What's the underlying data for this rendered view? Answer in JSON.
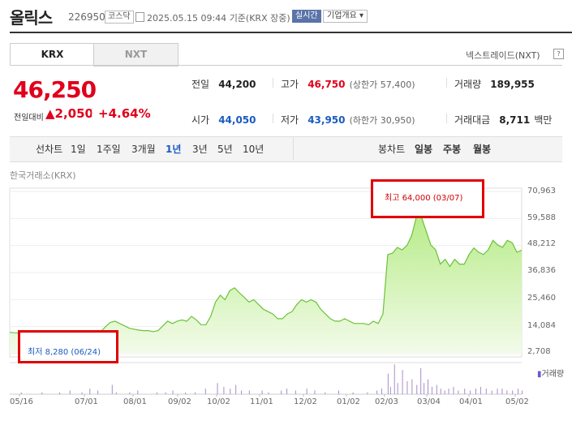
{
  "header": {
    "name": "올릭스",
    "code": "226950",
    "market": "코스닥",
    "date": "2025.05.15 09:44",
    "basis": "기준(KRX 장중)",
    "live": "실시간",
    "company_info": "기업개요 ▾"
  },
  "tabs": [
    {
      "label": "KRX"
    },
    {
      "label": "NXT"
    }
  ],
  "nxt_link": "넥스트레이드(NXT)",
  "quote": {
    "price": "46,250",
    "change_label": "전일대비",
    "change": "▲2,050",
    "change_pct": "+4.64%",
    "prev_close": {
      "label": "전일",
      "value": "44,200"
    },
    "high": {
      "label": "고가",
      "value": "46,750",
      "sub": "(상한가 57,400)"
    },
    "volume": {
      "label": "거래량",
      "value": "189,955"
    },
    "open": {
      "label": "시가",
      "value": "44,050"
    },
    "low": {
      "label": "저가",
      "value": "43,950",
      "sub": "(하한가 30,950)"
    },
    "amount": {
      "label": "거래대금",
      "value": "8,711",
      "unit": "백만"
    }
  },
  "periods": {
    "line_label": "선차트",
    "line_items": [
      "1일",
      "1주일",
      "3개월",
      "1년",
      "3년",
      "5년",
      "10년"
    ],
    "active": "1년",
    "candle_label": "봉차트",
    "candle_items": [
      "일봉",
      "주봉",
      "월봉"
    ]
  },
  "exchange_label": "한국거래소(KRX)",
  "chart_data": {
    "type": "area",
    "y_ticks": [
      "70,963",
      "59,588",
      "48,212",
      "36,836",
      "25,460",
      "14,084",
      "2,708"
    ],
    "ylim": [
      2708,
      70963
    ],
    "x_ticks": [
      "05/16",
      "07/01",
      "08/01",
      "09/02",
      "10/02",
      "11/01",
      "12/02",
      "01/02",
      "02/03",
      "03/04",
      "04/01",
      "05/02"
    ],
    "high_annotation": "최고 64,000 (03/07)",
    "low_annotation": "최저 8,280 (06/24)",
    "volume_label": "거래량",
    "price_series": [
      [
        0,
        11700
      ],
      [
        6,
        11500
      ],
      [
        12,
        11400
      ],
      [
        18,
        11000
      ],
      [
        24,
        10700
      ],
      [
        30,
        10800
      ],
      [
        36,
        10200
      ],
      [
        42,
        10000
      ],
      [
        48,
        9000
      ],
      [
        54,
        8600
      ],
      [
        60,
        9000
      ],
      [
        66,
        8300
      ],
      [
        72,
        8280
      ],
      [
        78,
        8700
      ],
      [
        84,
        8900
      ],
      [
        90,
        9100
      ],
      [
        96,
        9600
      ],
      [
        102,
        10400
      ],
      [
        108,
        11000
      ],
      [
        114,
        11900
      ],
      [
        120,
        14000
      ],
      [
        126,
        15800
      ],
      [
        132,
        16400
      ],
      [
        138,
        15400
      ],
      [
        144,
        14400
      ],
      [
        150,
        13400
      ],
      [
        156,
        13000
      ],
      [
        162,
        12600
      ],
      [
        168,
        12400
      ],
      [
        174,
        12400
      ],
      [
        180,
        12000
      ],
      [
        186,
        12400
      ],
      [
        192,
        14400
      ],
      [
        198,
        16400
      ],
      [
        204,
        15400
      ],
      [
        210,
        16400
      ],
      [
        216,
        16900
      ],
      [
        222,
        16400
      ],
      [
        228,
        18400
      ],
      [
        234,
        16900
      ],
      [
        240,
        14900
      ],
      [
        246,
        14900
      ],
      [
        252,
        18400
      ],
      [
        258,
        24400
      ],
      [
        264,
        27300
      ],
      [
        270,
        25400
      ],
      [
        276,
        29300
      ],
      [
        282,
        30400
      ],
      [
        288,
        28300
      ],
      [
        294,
        26400
      ],
      [
        300,
        24400
      ],
      [
        306,
        25400
      ],
      [
        312,
        23400
      ],
      [
        318,
        21400
      ],
      [
        324,
        20400
      ],
      [
        330,
        19400
      ],
      [
        336,
        17400
      ],
      [
        342,
        17400
      ],
      [
        348,
        19400
      ],
      [
        354,
        20400
      ],
      [
        360,
        23400
      ],
      [
        366,
        25400
      ],
      [
        372,
        24400
      ],
      [
        378,
        25400
      ],
      [
        384,
        24400
      ],
      [
        390,
        21400
      ],
      [
        396,
        19400
      ],
      [
        402,
        17400
      ],
      [
        408,
        16400
      ],
      [
        414,
        16400
      ],
      [
        420,
        17400
      ],
      [
        426,
        16400
      ],
      [
        432,
        15400
      ],
      [
        438,
        15400
      ],
      [
        444,
        15400
      ],
      [
        450,
        14900
      ],
      [
        456,
        16400
      ],
      [
        462,
        15400
      ],
      [
        468,
        19400
      ],
      [
        474,
        44400
      ],
      [
        480,
        45000
      ],
      [
        486,
        47400
      ],
      [
        492,
        46400
      ],
      [
        498,
        48200
      ],
      [
        504,
        52400
      ],
      [
        510,
        60400
      ],
      [
        516,
        60400
      ],
      [
        522,
        54400
      ],
      [
        528,
        48400
      ],
      [
        534,
        46400
      ],
      [
        540,
        40400
      ],
      [
        546,
        42400
      ],
      [
        552,
        39400
      ],
      [
        558,
        42400
      ],
      [
        564,
        40400
      ],
      [
        570,
        40400
      ],
      [
        576,
        44400
      ],
      [
        582,
        47200
      ],
      [
        588,
        45400
      ],
      [
        594,
        44400
      ],
      [
        600,
        46400
      ],
      [
        606,
        50400
      ],
      [
        612,
        48400
      ],
      [
        618,
        47400
      ],
      [
        624,
        50400
      ],
      [
        630,
        49400
      ],
      [
        636,
        45400
      ],
      [
        642,
        46250
      ]
    ],
    "volume_bars": [
      [
        14,
        1
      ],
      [
        40,
        1
      ],
      [
        62,
        1
      ],
      [
        75,
        2
      ],
      [
        90,
        1
      ],
      [
        100,
        3
      ],
      [
        110,
        2
      ],
      [
        128,
        5
      ],
      [
        133,
        1
      ],
      [
        150,
        1
      ],
      [
        160,
        2
      ],
      [
        184,
        1
      ],
      [
        195,
        1
      ],
      [
        204,
        2
      ],
      [
        220,
        1
      ],
      [
        232,
        1
      ],
      [
        245,
        3
      ],
      [
        260,
        6
      ],
      [
        268,
        4
      ],
      [
        276,
        3
      ],
      [
        283,
        5
      ],
      [
        290,
        2
      ],
      [
        300,
        2
      ],
      [
        316,
        2
      ],
      [
        324,
        1
      ],
      [
        340,
        2
      ],
      [
        347,
        3
      ],
      [
        358,
        2
      ],
      [
        372,
        3
      ],
      [
        382,
        2
      ],
      [
        395,
        1
      ],
      [
        412,
        2
      ],
      [
        430,
        1
      ],
      [
        448,
        1
      ],
      [
        460,
        2
      ],
      [
        466,
        3
      ],
      [
        474,
        11
      ],
      [
        477,
        4
      ],
      [
        482,
        16
      ],
      [
        486,
        6
      ],
      [
        492,
        13
      ],
      [
        498,
        7
      ],
      [
        504,
        8
      ],
      [
        510,
        5
      ],
      [
        515,
        14
      ],
      [
        519,
        6
      ],
      [
        524,
        8
      ],
      [
        529,
        4
      ],
      [
        535,
        5
      ],
      [
        540,
        3
      ],
      [
        545,
        2
      ],
      [
        550,
        3
      ],
      [
        556,
        4
      ],
      [
        562,
        2
      ],
      [
        570,
        3
      ],
      [
        577,
        2
      ],
      [
        584,
        3
      ],
      [
        590,
        4
      ],
      [
        597,
        3
      ],
      [
        604,
        2
      ],
      [
        611,
        3
      ],
      [
        617,
        3
      ],
      [
        623,
        2
      ],
      [
        630,
        2
      ],
      [
        637,
        3
      ],
      [
        642,
        2
      ]
    ]
  }
}
